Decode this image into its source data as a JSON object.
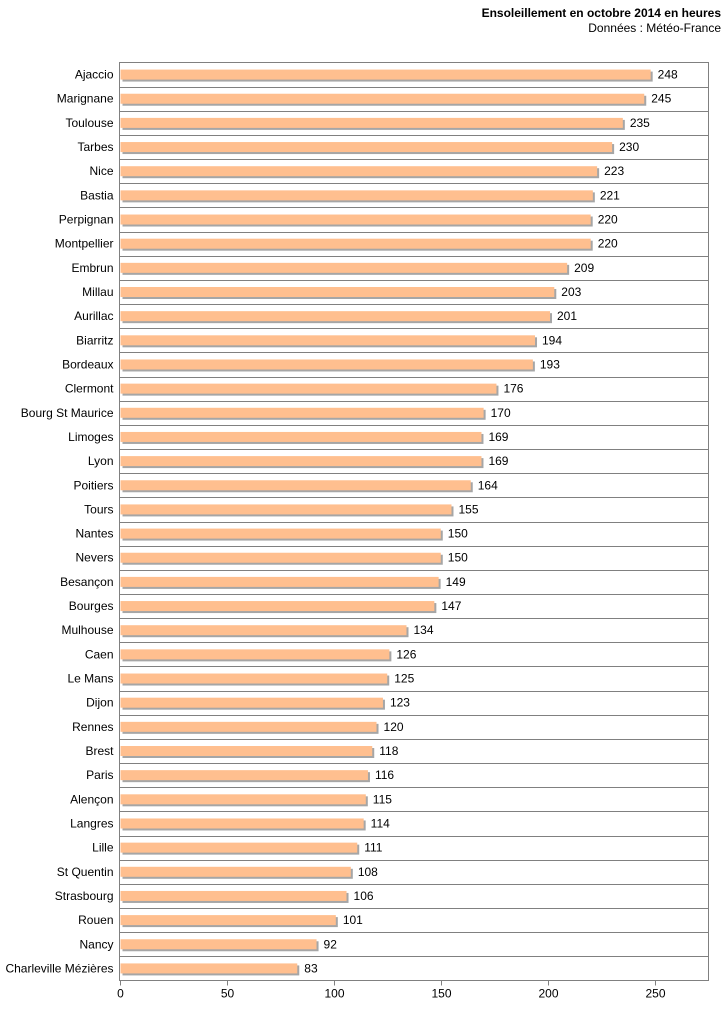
{
  "chart_data": {
    "type": "bar",
    "orientation": "horizontal",
    "title": "Ensoleillement  en octobre 2014 en heures",
    "subtitle": "Données : Météo-France",
    "xlabel": "",
    "ylabel": "",
    "xlim": [
      0,
      275
    ],
    "xticks": [
      0,
      50,
      100,
      150,
      200,
      250
    ],
    "grid": "horizontal",
    "bar_color": "#FFBF8F",
    "shadow_color": "#A6A6A6",
    "categories": [
      "Ajaccio",
      "Marignane",
      "Toulouse",
      "Tarbes",
      "Nice",
      "Bastia",
      "Perpignan",
      "Montpellier",
      "Embrun",
      "Millau",
      "Aurillac",
      "Biarritz",
      "Bordeaux",
      "Clermont",
      "Bourg St Maurice",
      "Limoges",
      "Lyon",
      "Poitiers",
      "Tours",
      "Nantes",
      "Nevers",
      "Besançon",
      "Bourges",
      "Mulhouse",
      "Caen",
      "Le Mans",
      "Dijon",
      "Rennes",
      "Brest",
      "Paris",
      "Alençon",
      "Langres",
      "Lille",
      "St Quentin",
      "Strasbourg",
      "Rouen",
      "Nancy",
      "Charleville Mézières"
    ],
    "values": [
      248,
      245,
      235,
      230,
      223,
      221,
      220,
      220,
      209,
      203,
      201,
      194,
      193,
      176,
      170,
      169,
      169,
      164,
      155,
      150,
      150,
      149,
      147,
      134,
      126,
      125,
      123,
      120,
      118,
      116,
      115,
      114,
      111,
      108,
      106,
      101,
      92,
      83
    ]
  }
}
